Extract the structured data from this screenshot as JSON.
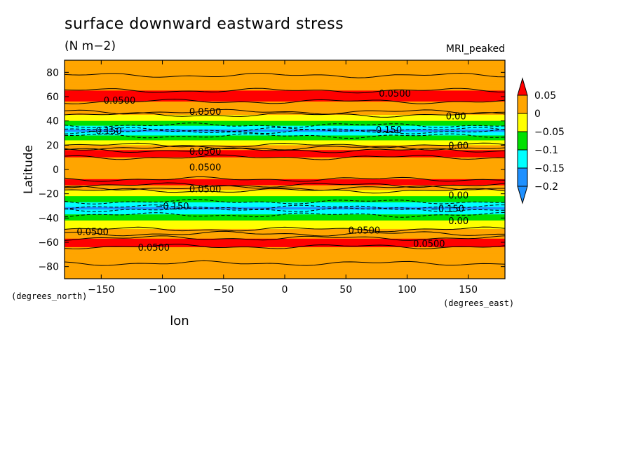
{
  "header": {
    "title": "surface downward eastward stress",
    "units": "(N m−2)",
    "model": "MRI_peaked"
  },
  "chart_data": {
    "type": "heatmap",
    "title": "surface downward eastward stress",
    "subtitle": "(N m−2)",
    "annotation": "MRI_peaked",
    "xlabel": "lon",
    "ylabel": "Latitude",
    "x_units": "(degrees_east)",
    "y_units": "(degrees_north)",
    "xlim": [
      -180,
      180
    ],
    "ylim": [
      -90,
      90
    ],
    "x_ticks": [
      -150,
      -100,
      -50,
      0,
      50,
      100,
      150
    ],
    "x_tick_labels": [
      "−150",
      "−100",
      "−50",
      "0",
      "50",
      "100",
      "150"
    ],
    "y_ticks": [
      80,
      60,
      40,
      20,
      0,
      -20,
      -40,
      -60,
      -80
    ],
    "y_tick_labels": [
      "80",
      "60",
      "40",
      "20",
      "0",
      "−20",
      "−40",
      "−60",
      "−80"
    ],
    "colorbar": {
      "levels": [
        0.05,
        0,
        -0.05,
        -0.1,
        -0.15,
        -0.2
      ],
      "labels": [
        "0.05",
        "0",
        "−0.05",
        "−0.1",
        "−0.15",
        "−0.2"
      ],
      "colors": [
        "#ff0000",
        "#ffa500",
        "#ffff00",
        "#00e000",
        "#00ffff",
        "#1e90ff",
        "#1e90ff"
      ]
    },
    "zonal_profile": [
      {
        "lat": 80,
        "value": 0.02
      },
      {
        "lat": 60,
        "value": 0.06
      },
      {
        "lat": 48,
        "value": 0.03
      },
      {
        "lat": 40,
        "value": -0.05
      },
      {
        "lat": 32,
        "value": -0.16
      },
      {
        "lat": 24,
        "value": -0.05
      },
      {
        "lat": 15,
        "value": 0.06
      },
      {
        "lat": 0,
        "value": 0.03
      },
      {
        "lat": -12,
        "value": 0.06
      },
      {
        "lat": -22,
        "value": -0.05
      },
      {
        "lat": -32,
        "value": -0.16
      },
      {
        "lat": -42,
        "value": -0.05
      },
      {
        "lat": -58,
        "value": 0.06
      },
      {
        "lat": -80,
        "value": 0.02
      }
    ],
    "contour_labels": [
      {
        "text": "0.0500",
        "lon": -135,
        "lat": 57
      },
      {
        "text": "0.0500",
        "lon": 90,
        "lat": 63
      },
      {
        "text": "0.0500",
        "lon": -65,
        "lat": 48
      },
      {
        "text": "0.00",
        "lon": 140,
        "lat": 44
      },
      {
        "text": "−0.150",
        "lon": -147,
        "lat": 32
      },
      {
        "text": "−0.150",
        "lon": 82,
        "lat": 33
      },
      {
        "text": "0.00",
        "lon": 142,
        "lat": 20
      },
      {
        "text": "0.0500",
        "lon": -65,
        "lat": 15
      },
      {
        "text": "0.0500",
        "lon": -65,
        "lat": 2
      },
      {
        "text": "0.0500",
        "lon": -65,
        "lat": -16
      },
      {
        "text": "0.00",
        "lon": 142,
        "lat": -21
      },
      {
        "text": "−0.150",
        "lon": -92,
        "lat": -30
      },
      {
        "text": "−0.150",
        "lon": 133,
        "lat": -32
      },
      {
        "text": "0.00",
        "lon": 142,
        "lat": -42
      },
      {
        "text": "0.0500",
        "lon": -157,
        "lat": -51
      },
      {
        "text": "0.0500",
        "lon": 65,
        "lat": -50
      },
      {
        "text": "0.0500",
        "lon": -107,
        "lat": -64
      },
      {
        "text": "0.0500",
        "lon": 118,
        "lat": -61
      }
    ]
  }
}
